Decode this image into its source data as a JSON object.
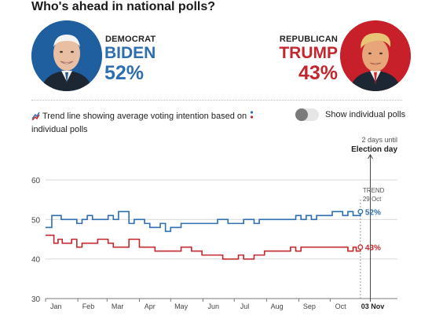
{
  "header": {
    "title": "Who's ahead in national polls?"
  },
  "candidates": {
    "democrat": {
      "party": "DEMOCRAT",
      "name": "BIDEN",
      "pct": "52%",
      "color": "#2e6daf"
    },
    "republican": {
      "party": "REPUBLICAN",
      "name": "TRUMP",
      "pct": "43%",
      "color": "#c2272d"
    }
  },
  "legend": {
    "trend_text": "Trend line showing average voting intention based on",
    "polls_text": "individual polls"
  },
  "toggle": {
    "label": "Show individual polls",
    "on": false
  },
  "election": {
    "days_until": "2 days until",
    "label": "Election day",
    "date_label": "03 Nov"
  },
  "trend_label": {
    "line1": "TREND",
    "line2": "29 Oct"
  },
  "chart_data": {
    "type": "line",
    "y_ticks": [
      60,
      50,
      40,
      30
    ],
    "ylim": [
      30,
      60
    ],
    "x_ticks": [
      "Jan",
      "Feb",
      "Mar",
      "Apr",
      "May",
      "Jun",
      "Jul",
      "Aug",
      "Sep",
      "Oct"
    ],
    "grid": true,
    "series": [
      {
        "name": "BIDEN",
        "color": "#2e6daf",
        "end_label": "52%",
        "x_day": [
          0,
          5,
          6,
          8,
          15,
          20,
          25,
          30,
          35,
          40,
          45,
          48,
          55,
          60,
          65,
          70,
          75,
          80,
          85,
          90,
          95,
          100,
          105,
          110,
          115,
          120,
          125,
          130,
          135,
          140,
          145,
          150,
          155,
          160,
          165,
          170,
          175,
          180,
          185,
          190,
          195,
          200,
          205,
          210,
          215,
          220,
          225,
          230,
          235,
          240,
          245,
          250,
          255,
          260,
          265,
          270,
          275,
          280,
          285,
          290,
          295,
          298,
          302
        ],
        "values": [
          48,
          48,
          51,
          51,
          50,
          50,
          50,
          49,
          50,
          51,
          50,
          50,
          50,
          51,
          50,
          52,
          52,
          49,
          50,
          50,
          49,
          48,
          48,
          49,
          47,
          48,
          48,
          49,
          49,
          49,
          49,
          49,
          49,
          49,
          50,
          50,
          49,
          49,
          49,
          50,
          50,
          49,
          50,
          50,
          50,
          50,
          50,
          50,
          50,
          51,
          50,
          51,
          50,
          51,
          51,
          51,
          52,
          52,
          51,
          52,
          51,
          51,
          52
        ]
      },
      {
        "name": "TRUMP",
        "color": "#c2272d",
        "end_label": "43%",
        "x_day": [
          0,
          5,
          8,
          12,
          16,
          20,
          25,
          30,
          35,
          40,
          45,
          50,
          55,
          60,
          65,
          70,
          75,
          80,
          85,
          90,
          95,
          100,
          105,
          110,
          115,
          120,
          125,
          130,
          135,
          140,
          145,
          150,
          155,
          160,
          165,
          170,
          175,
          180,
          185,
          190,
          195,
          200,
          205,
          210,
          215,
          220,
          225,
          230,
          235,
          240,
          245,
          250,
          255,
          260,
          265,
          270,
          275,
          280,
          285,
          290,
          295,
          298,
          302
        ],
        "values": [
          46,
          46,
          44,
          45,
          44,
          44,
          45,
          43,
          44,
          44,
          44,
          45,
          45,
          44,
          43,
          43,
          43,
          45,
          45,
          43,
          43,
          43,
          42,
          42,
          42,
          42,
          42,
          43,
          43,
          42,
          42,
          41,
          41,
          41,
          41,
          40,
          40,
          40,
          41,
          40,
          40,
          41,
          41,
          42,
          42,
          42,
          42,
          42,
          43,
          42,
          43,
          43,
          43,
          43,
          43,
          43,
          43,
          43,
          43,
          42,
          43,
          42,
          43
        ]
      }
    ],
    "trend_day": 302,
    "election_day": 307
  }
}
